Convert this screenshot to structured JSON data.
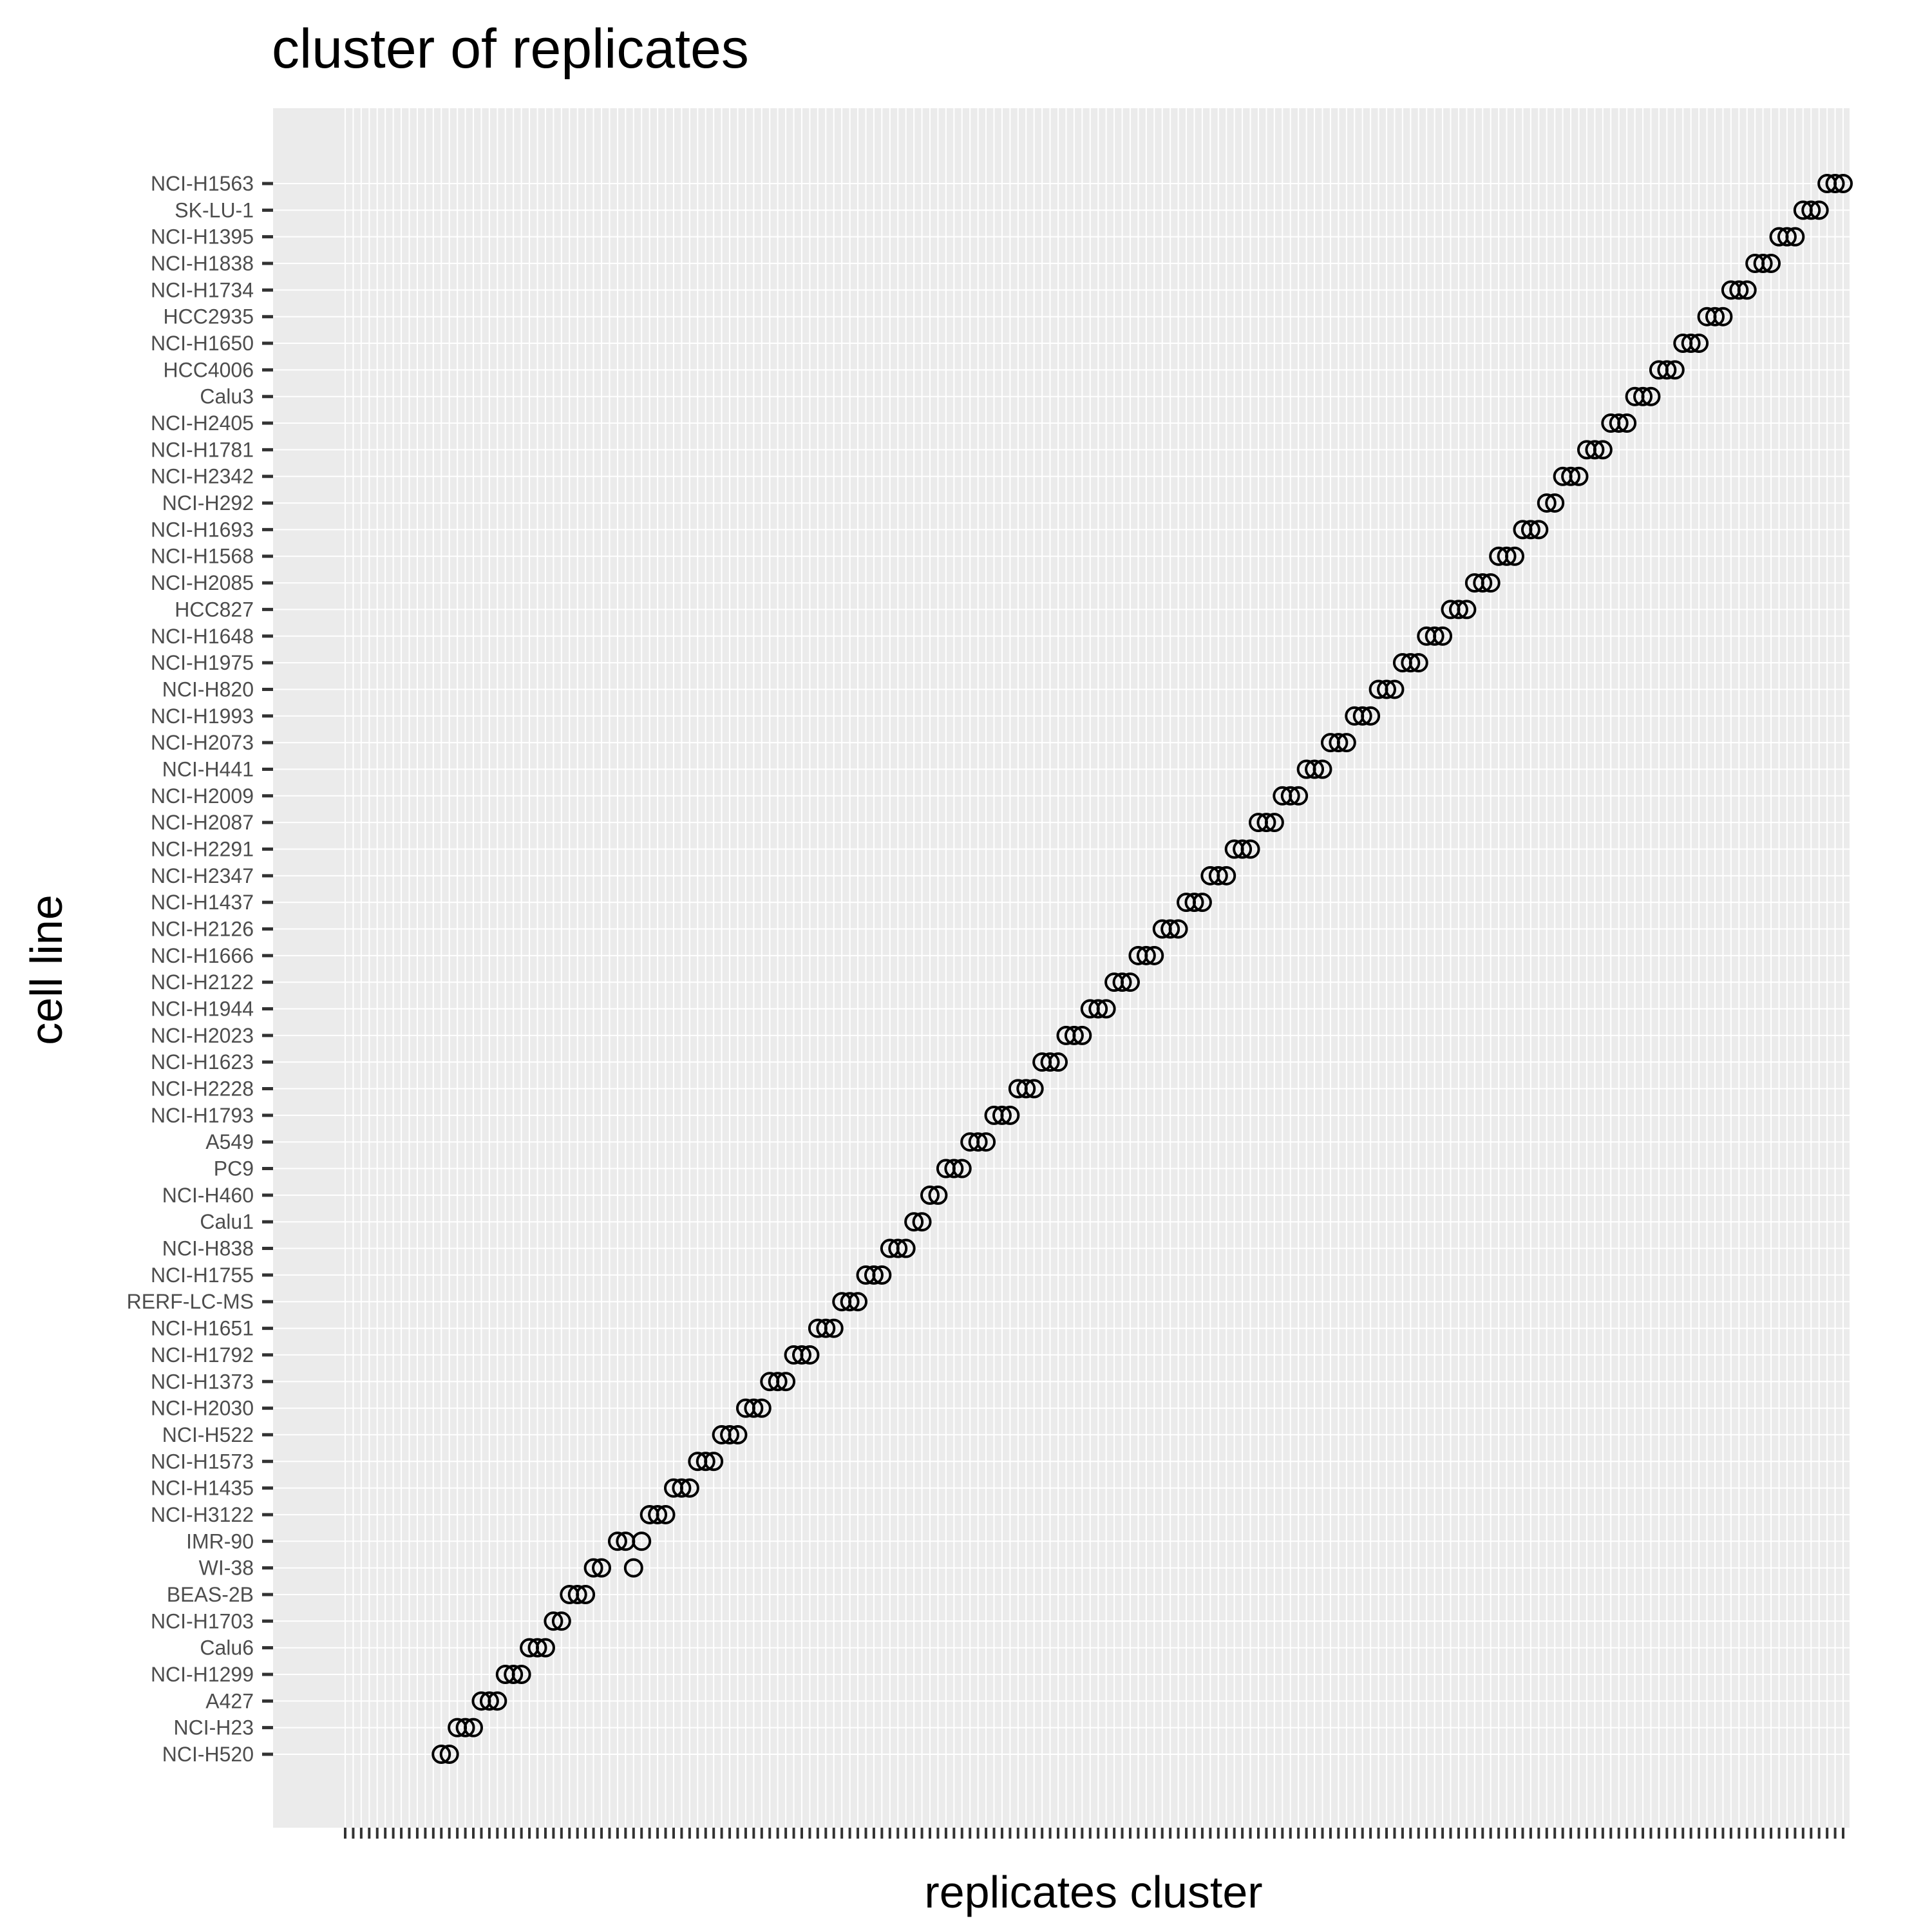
{
  "chart_data": {
    "type": "scatter",
    "title": "cluster of replicates",
    "xlabel": "replicates cluster",
    "ylabel": "cell line",
    "x_tick_count": 188,
    "grid": true,
    "marker": "open-circle",
    "categories": [
      "NCI-H1563",
      "SK-LU-1",
      "NCI-H1395",
      "NCI-H1838",
      "NCI-H1734",
      "HCC2935",
      "NCI-H1650",
      "HCC4006",
      "Calu3",
      "NCI-H2405",
      "NCI-H1781",
      "NCI-H2342",
      "NCI-H292",
      "NCI-H1693",
      "NCI-H1568",
      "NCI-H2085",
      "HCC827",
      "NCI-H1648",
      "NCI-H1975",
      "NCI-H820",
      "NCI-H1993",
      "NCI-H2073",
      "NCI-H441",
      "NCI-H2009",
      "NCI-H2087",
      "NCI-H2291",
      "NCI-H2347",
      "NCI-H1437",
      "NCI-H2126",
      "NCI-H1666",
      "NCI-H2122",
      "NCI-H1944",
      "NCI-H2023",
      "NCI-H1623",
      "NCI-H2228",
      "NCI-H1793",
      "A549",
      "PC9",
      "NCI-H460",
      "Calu1",
      "NCI-H838",
      "NCI-H1755",
      "RERF-LC-MS",
      "NCI-H1651",
      "NCI-H1792",
      "NCI-H1373",
      "NCI-H2030",
      "NCI-H522",
      "NCI-H1573",
      "NCI-H1435",
      "NCI-H3122",
      "IMR-90",
      "WI-38",
      "BEAS-2B",
      "NCI-H1703",
      "Calu6",
      "NCI-H1299",
      "A427",
      "NCI-H23",
      "NCI-H520"
    ],
    "points": [
      {
        "y": "NCI-H1563",
        "x": [
          186,
          187,
          188
        ]
      },
      {
        "y": "SK-LU-1",
        "x": [
          183,
          184,
          185
        ]
      },
      {
        "y": "NCI-H1395",
        "x": [
          180,
          181,
          182
        ]
      },
      {
        "y": "NCI-H1838",
        "x": [
          177,
          178,
          179
        ]
      },
      {
        "y": "NCI-H1734",
        "x": [
          174,
          175,
          176
        ]
      },
      {
        "y": "HCC2935",
        "x": [
          171,
          172,
          173
        ]
      },
      {
        "y": "NCI-H1650",
        "x": [
          168,
          169,
          170
        ]
      },
      {
        "y": "HCC4006",
        "x": [
          165,
          166,
          167
        ]
      },
      {
        "y": "Calu3",
        "x": [
          162,
          163,
          164
        ]
      },
      {
        "y": "NCI-H2405",
        "x": [
          159,
          160,
          161
        ]
      },
      {
        "y": "NCI-H1781",
        "x": [
          156,
          157,
          158
        ]
      },
      {
        "y": "NCI-H2342",
        "x": [
          153,
          154,
          155
        ]
      },
      {
        "y": "NCI-H292",
        "x": [
          151,
          152
        ]
      },
      {
        "y": "NCI-H1693",
        "x": [
          148,
          149,
          150
        ]
      },
      {
        "y": "NCI-H1568",
        "x": [
          145,
          146,
          147
        ]
      },
      {
        "y": "NCI-H2085",
        "x": [
          142,
          143,
          144
        ]
      },
      {
        "y": "HCC827",
        "x": [
          139,
          140,
          141
        ]
      },
      {
        "y": "NCI-H1648",
        "x": [
          136,
          137,
          138
        ]
      },
      {
        "y": "NCI-H1975",
        "x": [
          133,
          134,
          135
        ]
      },
      {
        "y": "NCI-H820",
        "x": [
          130,
          131,
          132
        ]
      },
      {
        "y": "NCI-H1993",
        "x": [
          127,
          128,
          129
        ]
      },
      {
        "y": "NCI-H2073",
        "x": [
          124,
          125,
          126
        ]
      },
      {
        "y": "NCI-H441",
        "x": [
          121,
          122,
          123
        ]
      },
      {
        "y": "NCI-H2009",
        "x": [
          118,
          119,
          120
        ]
      },
      {
        "y": "NCI-H2087",
        "x": [
          115,
          116,
          117
        ]
      },
      {
        "y": "NCI-H2291",
        "x": [
          112,
          113,
          114
        ]
      },
      {
        "y": "NCI-H2347",
        "x": [
          109,
          110,
          111
        ]
      },
      {
        "y": "NCI-H1437",
        "x": [
          106,
          107,
          108
        ]
      },
      {
        "y": "NCI-H2126",
        "x": [
          103,
          104,
          105
        ]
      },
      {
        "y": "NCI-H1666",
        "x": [
          100,
          101,
          102
        ]
      },
      {
        "y": "NCI-H2122",
        "x": [
          97,
          98,
          99
        ]
      },
      {
        "y": "NCI-H1944",
        "x": [
          94,
          95,
          96
        ]
      },
      {
        "y": "NCI-H2023",
        "x": [
          91,
          92,
          93
        ]
      },
      {
        "y": "NCI-H1623",
        "x": [
          88,
          89,
          90
        ]
      },
      {
        "y": "NCI-H2228",
        "x": [
          85,
          86,
          87
        ]
      },
      {
        "y": "NCI-H1793",
        "x": [
          82,
          83,
          84
        ]
      },
      {
        "y": "A549",
        "x": [
          79,
          80,
          81
        ]
      },
      {
        "y": "PC9",
        "x": [
          76,
          77,
          78
        ]
      },
      {
        "y": "NCI-H460",
        "x": [
          74,
          75
        ]
      },
      {
        "y": "Calu1",
        "x": [
          72,
          73
        ]
      },
      {
        "y": "NCI-H838",
        "x": [
          69,
          70,
          71
        ]
      },
      {
        "y": "NCI-H1755",
        "x": [
          66,
          67,
          68
        ]
      },
      {
        "y": "RERF-LC-MS",
        "x": [
          63,
          64,
          65
        ]
      },
      {
        "y": "NCI-H1651",
        "x": [
          60,
          61,
          62
        ]
      },
      {
        "y": "NCI-H1792",
        "x": [
          57,
          58,
          59
        ]
      },
      {
        "y": "NCI-H1373",
        "x": [
          54,
          55,
          56
        ]
      },
      {
        "y": "NCI-H2030",
        "x": [
          51,
          52,
          53
        ]
      },
      {
        "y": "NCI-H522",
        "x": [
          48,
          49,
          50
        ]
      },
      {
        "y": "NCI-H1573",
        "x": [
          45,
          46,
          47
        ]
      },
      {
        "y": "NCI-H1435",
        "x": [
          42,
          43,
          44
        ]
      },
      {
        "y": "NCI-H3122",
        "x": [
          39,
          40,
          41
        ]
      },
      {
        "y": "IMR-90",
        "x": [
          35,
          36,
          38
        ]
      },
      {
        "y": "WI-38",
        "x": [
          32,
          33,
          37
        ]
      },
      {
        "y": "BEAS-2B",
        "x": [
          29,
          30,
          31
        ]
      },
      {
        "y": "NCI-H1703",
        "x": [
          27,
          28
        ]
      },
      {
        "y": "Calu6",
        "x": [
          24,
          25,
          26
        ]
      },
      {
        "y": "NCI-H1299",
        "x": [
          21,
          22,
          23
        ]
      },
      {
        "y": "A427",
        "x": [
          18,
          19,
          20
        ]
      },
      {
        "y": "NCI-H23",
        "x": [
          15,
          16,
          17
        ]
      },
      {
        "y": "NCI-H520",
        "x": [
          13,
          14
        ]
      }
    ],
    "colors": {
      "panel": "#ebebeb",
      "grid": "#ffffff",
      "marker": "#000000",
      "tick": "#333333",
      "tick_label": "#4d4d4d"
    }
  }
}
